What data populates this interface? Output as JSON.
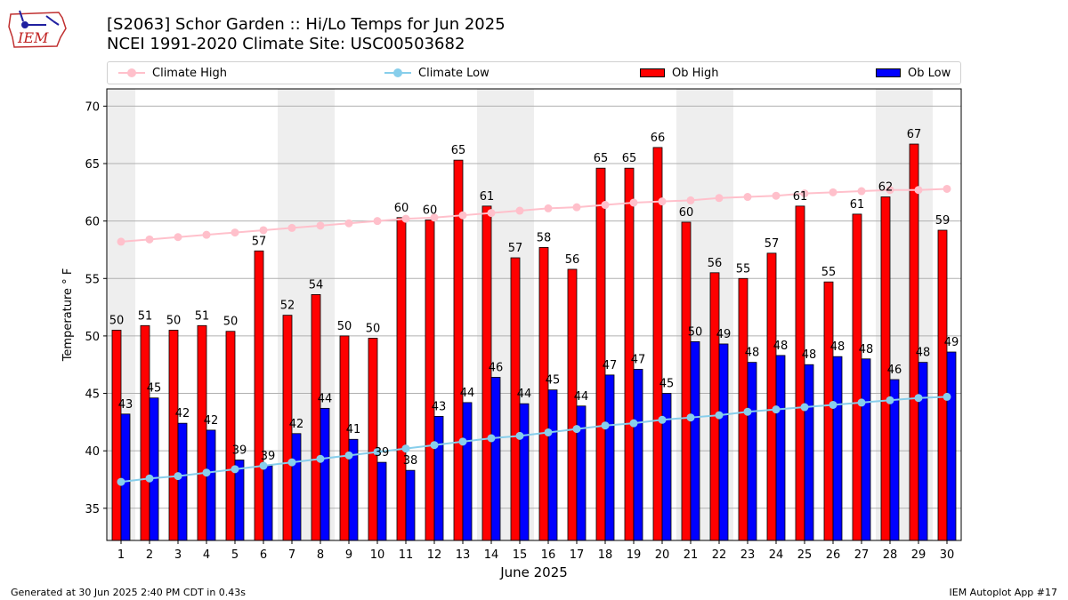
{
  "header": {
    "logo_text": "IEM",
    "title_line1": "[S2063] Schor Garden :: Hi/Lo Temps for Jun 2025",
    "title_line2": "NCEI 1991-2020 Climate Site: USC00503682"
  },
  "footer": {
    "left": "Generated at 30 Jun 2025 2:40 PM CDT in 0.43s",
    "right": "IEM Autoplot App #17"
  },
  "colors": {
    "ob_high": "#ff0000",
    "ob_low": "#0000ff",
    "climate_high": "#ffc0cb",
    "climate_low": "#87ceeb",
    "weekend_band": "#eeeeee",
    "grid": "#b0b0b0"
  },
  "chart_data": {
    "type": "bar",
    "title": "[S2063] Schor Garden :: Hi/Lo Temps for Jun 2025",
    "subtitle": "NCEI 1991-2020 Climate Site: USC00503682",
    "xlabel": "June 2025",
    "ylabel": "Temperature ° F",
    "ylim": [
      32.2,
      71.5
    ],
    "yticks": [
      35,
      40,
      45,
      50,
      55,
      60,
      65,
      70
    ],
    "categories": [
      "1",
      "2",
      "3",
      "4",
      "5",
      "6",
      "7",
      "8",
      "9",
      "10",
      "11",
      "12",
      "13",
      "14",
      "15",
      "16",
      "17",
      "18",
      "19",
      "20",
      "21",
      "22",
      "23",
      "24",
      "25",
      "26",
      "27",
      "28",
      "29",
      "30"
    ],
    "legend_position": "top",
    "grid": "horizontal",
    "weekend_days": [
      1,
      7,
      8,
      14,
      15,
      21,
      22,
      28,
      29
    ],
    "series": [
      {
        "name": "Ob High",
        "kind": "bar",
        "values": [
          50.5,
          50.9,
          50.5,
          50.9,
          50.4,
          57.4,
          51.8,
          53.6,
          50.0,
          49.8,
          60.3,
          60.1,
          65.3,
          61.3,
          56.8,
          57.7,
          55.8,
          64.6,
          64.6,
          66.4,
          59.9,
          55.5,
          55.0,
          57.2,
          61.3,
          54.7,
          60.6,
          62.1,
          66.7,
          59.2
        ],
        "labels": [
          "50",
          "51",
          "50",
          "51",
          "50",
          "57",
          "52",
          "54",
          "50",
          "50",
          "60",
          "60",
          "65",
          "61",
          "57",
          "58",
          "56",
          "65",
          "65",
          "66",
          "60",
          "56",
          "55",
          "57",
          "61",
          "55",
          "61",
          "62",
          "67",
          "59"
        ]
      },
      {
        "name": "Ob Low",
        "kind": "bar",
        "values": [
          43.2,
          44.6,
          42.4,
          41.8,
          39.2,
          38.7,
          41.5,
          43.7,
          41.0,
          39.0,
          38.3,
          43.0,
          44.2,
          46.4,
          44.1,
          45.3,
          43.9,
          46.6,
          47.1,
          45.0,
          49.5,
          49.3,
          47.7,
          48.3,
          47.5,
          48.2,
          48.0,
          46.2,
          47.7,
          48.6
        ],
        "labels": [
          "43",
          "45",
          "42",
          "42",
          "39",
          "39",
          "42",
          "44",
          "41",
          "39",
          "38",
          "43",
          "44",
          "46",
          "44",
          "45",
          "44",
          "47",
          "47",
          "45",
          "50",
          "49",
          "48",
          "48",
          "48",
          "48",
          "48",
          "46",
          "48",
          "49"
        ]
      },
      {
        "name": "Climate High",
        "kind": "line",
        "values": [
          58.2,
          58.4,
          58.6,
          58.8,
          59.0,
          59.2,
          59.4,
          59.6,
          59.8,
          60.0,
          60.2,
          60.3,
          60.5,
          60.7,
          60.9,
          61.1,
          61.2,
          61.4,
          61.6,
          61.7,
          61.8,
          62.0,
          62.1,
          62.2,
          62.4,
          62.5,
          62.6,
          62.7,
          62.7,
          62.8
        ]
      },
      {
        "name": "Climate Low",
        "kind": "line",
        "values": [
          37.3,
          37.6,
          37.8,
          38.1,
          38.4,
          38.7,
          39.0,
          39.3,
          39.6,
          39.9,
          40.2,
          40.5,
          40.8,
          41.1,
          41.3,
          41.6,
          41.9,
          42.2,
          42.4,
          42.7,
          42.9,
          43.1,
          43.4,
          43.6,
          43.8,
          44.0,
          44.2,
          44.4,
          44.6,
          44.7
        ]
      }
    ]
  },
  "legend": {
    "climate_high": "Climate High",
    "climate_low": "Climate Low",
    "ob_high": "Ob High",
    "ob_low": "Ob Low"
  }
}
